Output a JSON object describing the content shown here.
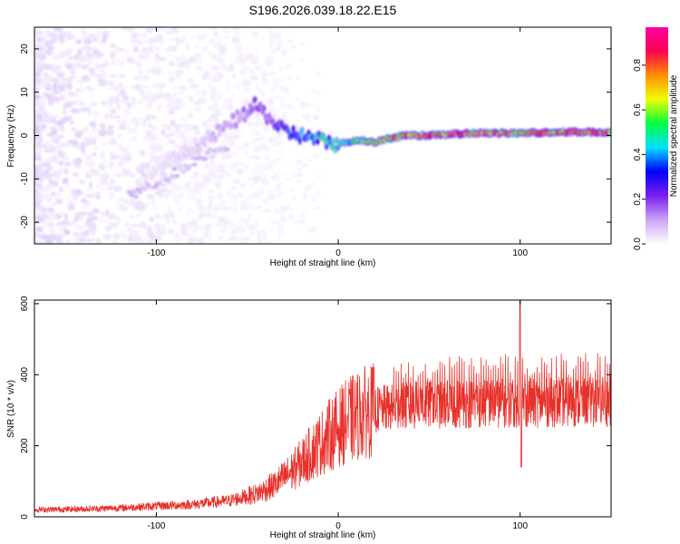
{
  "page_title": "S196.2026.039.18.22.E15",
  "chart_data": [
    {
      "type": "heatmap",
      "name": "spectrogram",
      "title": "S196.2026.039.18.22.E15",
      "xlabel": "Height of straight line (km)",
      "ylabel": "Frequency (Hz)",
      "xlim": [
        -167,
        150
      ],
      "ylim": [
        -25,
        25
      ],
      "x_ticks": [
        -100,
        0,
        100
      ],
      "x_tick_labels": [
        "-100",
        "0",
        "100"
      ],
      "y_ticks": [
        -20,
        -10,
        0,
        10,
        20
      ],
      "y_tick_labels": [
        "-20",
        "-10",
        "0",
        "10",
        "20"
      ],
      "colorbar": {
        "label": "Normalized spectral amplitude",
        "range": [
          0,
          0.97
        ],
        "ticks": [
          0,
          0.2,
          0.4,
          0.6,
          0.8
        ],
        "tick_labels": [
          "0.0",
          "0.2",
          "0.4",
          "0.6",
          "0.8"
        ],
        "colors": [
          "#ffffff",
          "#c9a5f5",
          "#7a1ff0",
          "#0000ff",
          "#00e0ff",
          "#00ff40",
          "#f0ff00",
          "#ff9000",
          "#ff0050",
          "#ff00a0"
        ]
      },
      "ridge": {
        "x": [
          -100,
          -80,
          -65,
          -55,
          -45,
          -38,
          -30,
          -20,
          -10,
          0,
          10,
          20,
          35,
          50,
          70,
          90,
          100,
          120,
          150
        ],
        "freq": [
          -8,
          -3,
          1,
          4,
          7,
          4,
          1,
          0,
          -1,
          -2,
          -1,
          -1.5,
          0,
          0,
          0.5,
          0.5,
          0.5,
          0.8,
          0.8
        ],
        "amplitude": [
          0.05,
          0.07,
          0.12,
          0.16,
          0.25,
          0.22,
          0.35,
          0.45,
          0.55,
          0.5,
          0.6,
          0.8,
          0.9,
          0.92,
          0.95,
          0.95,
          0.8,
          0.95,
          0.95
        ]
      }
    },
    {
      "type": "line",
      "name": "snr",
      "xlabel": "Height of straight line (km)",
      "ylabel": "SNR (10 * v/v)",
      "xlim": [
        -167,
        150
      ],
      "ylim": [
        0,
        610
      ],
      "x_ticks": [
        -100,
        0,
        100
      ],
      "x_tick_labels": [
        "-100",
        "0",
        "100"
      ],
      "y_ticks": [
        0,
        200,
        400,
        600
      ],
      "y_tick_labels": [
        "0",
        "200",
        "400",
        "600"
      ],
      "color": "#e8302a",
      "trend": {
        "x": [
          -167,
          -140,
          -120,
          -100,
          -80,
          -60,
          -45,
          -35,
          -25,
          -15,
          -5,
          5,
          15,
          25,
          35,
          50,
          70,
          90,
          100,
          120,
          150
        ],
        "y": [
          20,
          22,
          25,
          30,
          35,
          45,
          65,
          90,
          130,
          180,
          230,
          270,
          295,
          305,
          310,
          315,
          318,
          320,
          320,
          322,
          325
        ]
      },
      "spike": {
        "x": 100,
        "max": 610,
        "min": 140
      }
    }
  ]
}
